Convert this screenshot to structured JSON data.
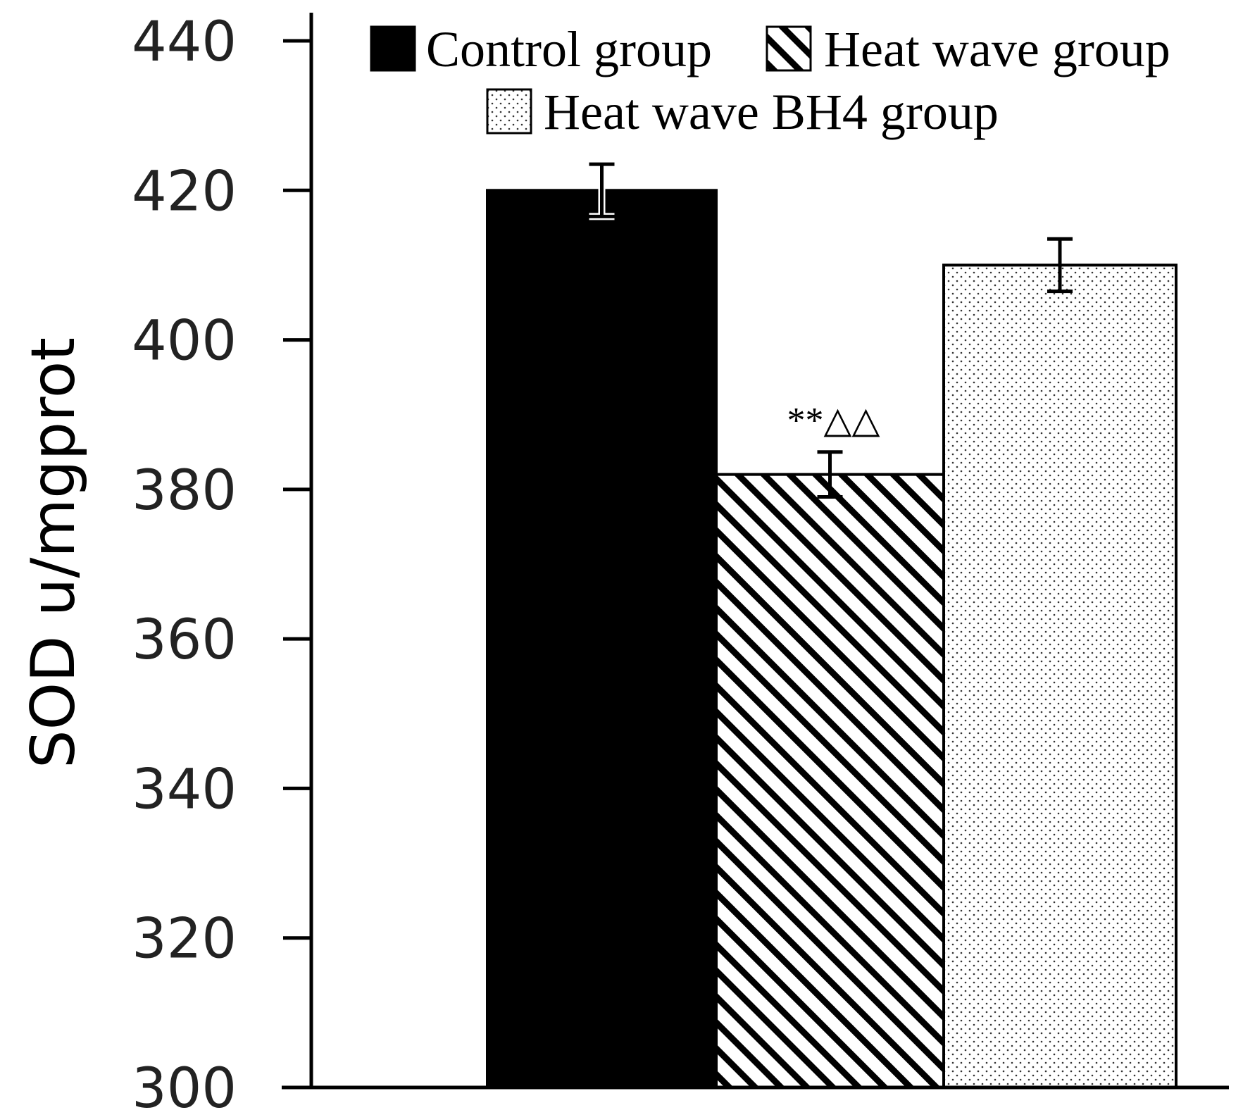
{
  "chart_data": {
    "type": "bar",
    "title": "",
    "xlabel": "",
    "ylabel": "SOD u/mgprot",
    "ylim": [
      300,
      440
    ],
    "yticks": [
      440,
      420,
      400,
      380,
      360,
      340,
      320,
      300
    ],
    "grid": false,
    "legend_position": "top",
    "categories": [
      "Control group",
      "Heat wave group",
      "Heat wave BH4 group"
    ],
    "series": [
      {
        "name": "Control group",
        "value": 420,
        "error": 3.5,
        "pattern": "solid-black"
      },
      {
        "name": "Heat wave group",
        "value": 382,
        "error": 3,
        "pattern": "diagonal-hatch"
      },
      {
        "name": "Heat wave BH4 group",
        "value": 410,
        "error": 3.5,
        "pattern": "dots"
      }
    ],
    "annotations": [
      {
        "category": "Heat wave group",
        "text": "**△△"
      }
    ]
  },
  "colors": {
    "control": "#000000",
    "outline": "#000000",
    "axis": "#000000"
  }
}
